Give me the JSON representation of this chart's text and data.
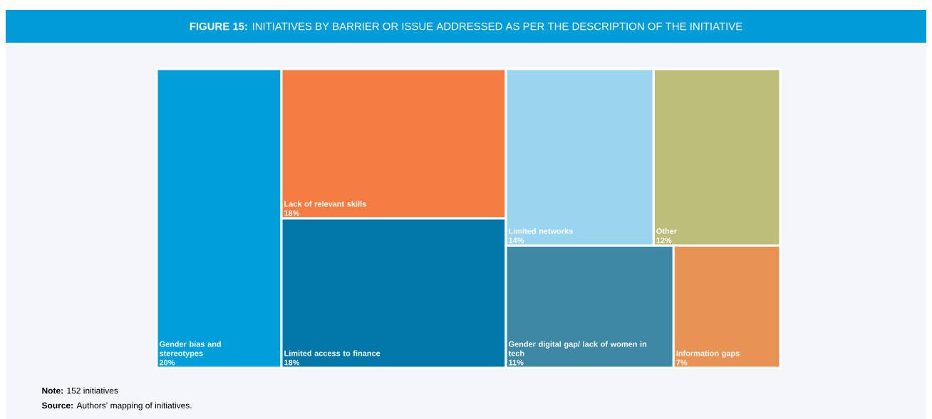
{
  "chart_data": {
    "type": "other",
    "title": "**FIGURE 15:** INITIATIVES BY BARRIER OR ISSUE ADDRESSED AS PER THE DESCRIPTION OF THE INITIATIVE",
    "categories": [
      "Gender bias and stereotypes",
      "Lack of relevant skills",
      "Limited access to finance",
      "Limited networks",
      "Other",
      "Gender digital gap/ lack of women in tech",
      "Information gaps"
    ],
    "values": [
      20,
      18,
      18,
      14,
      12,
      11,
      7
    ],
    "value_labels": [
      "20%",
      "18%",
      "18%",
      "14%",
      "12%",
      "11%",
      "7%"
    ],
    "colors": [
      "#009fdb",
      "#f47d43",
      "#0077a8",
      "#9ad5ef",
      "#bcbe7a",
      "#3e88a6",
      "#e89256"
    ],
    "annotations": [
      "**Note:** 152 initiatives",
      "**Source:** Authors’ mapping of initiatives."
    ]
  }
}
